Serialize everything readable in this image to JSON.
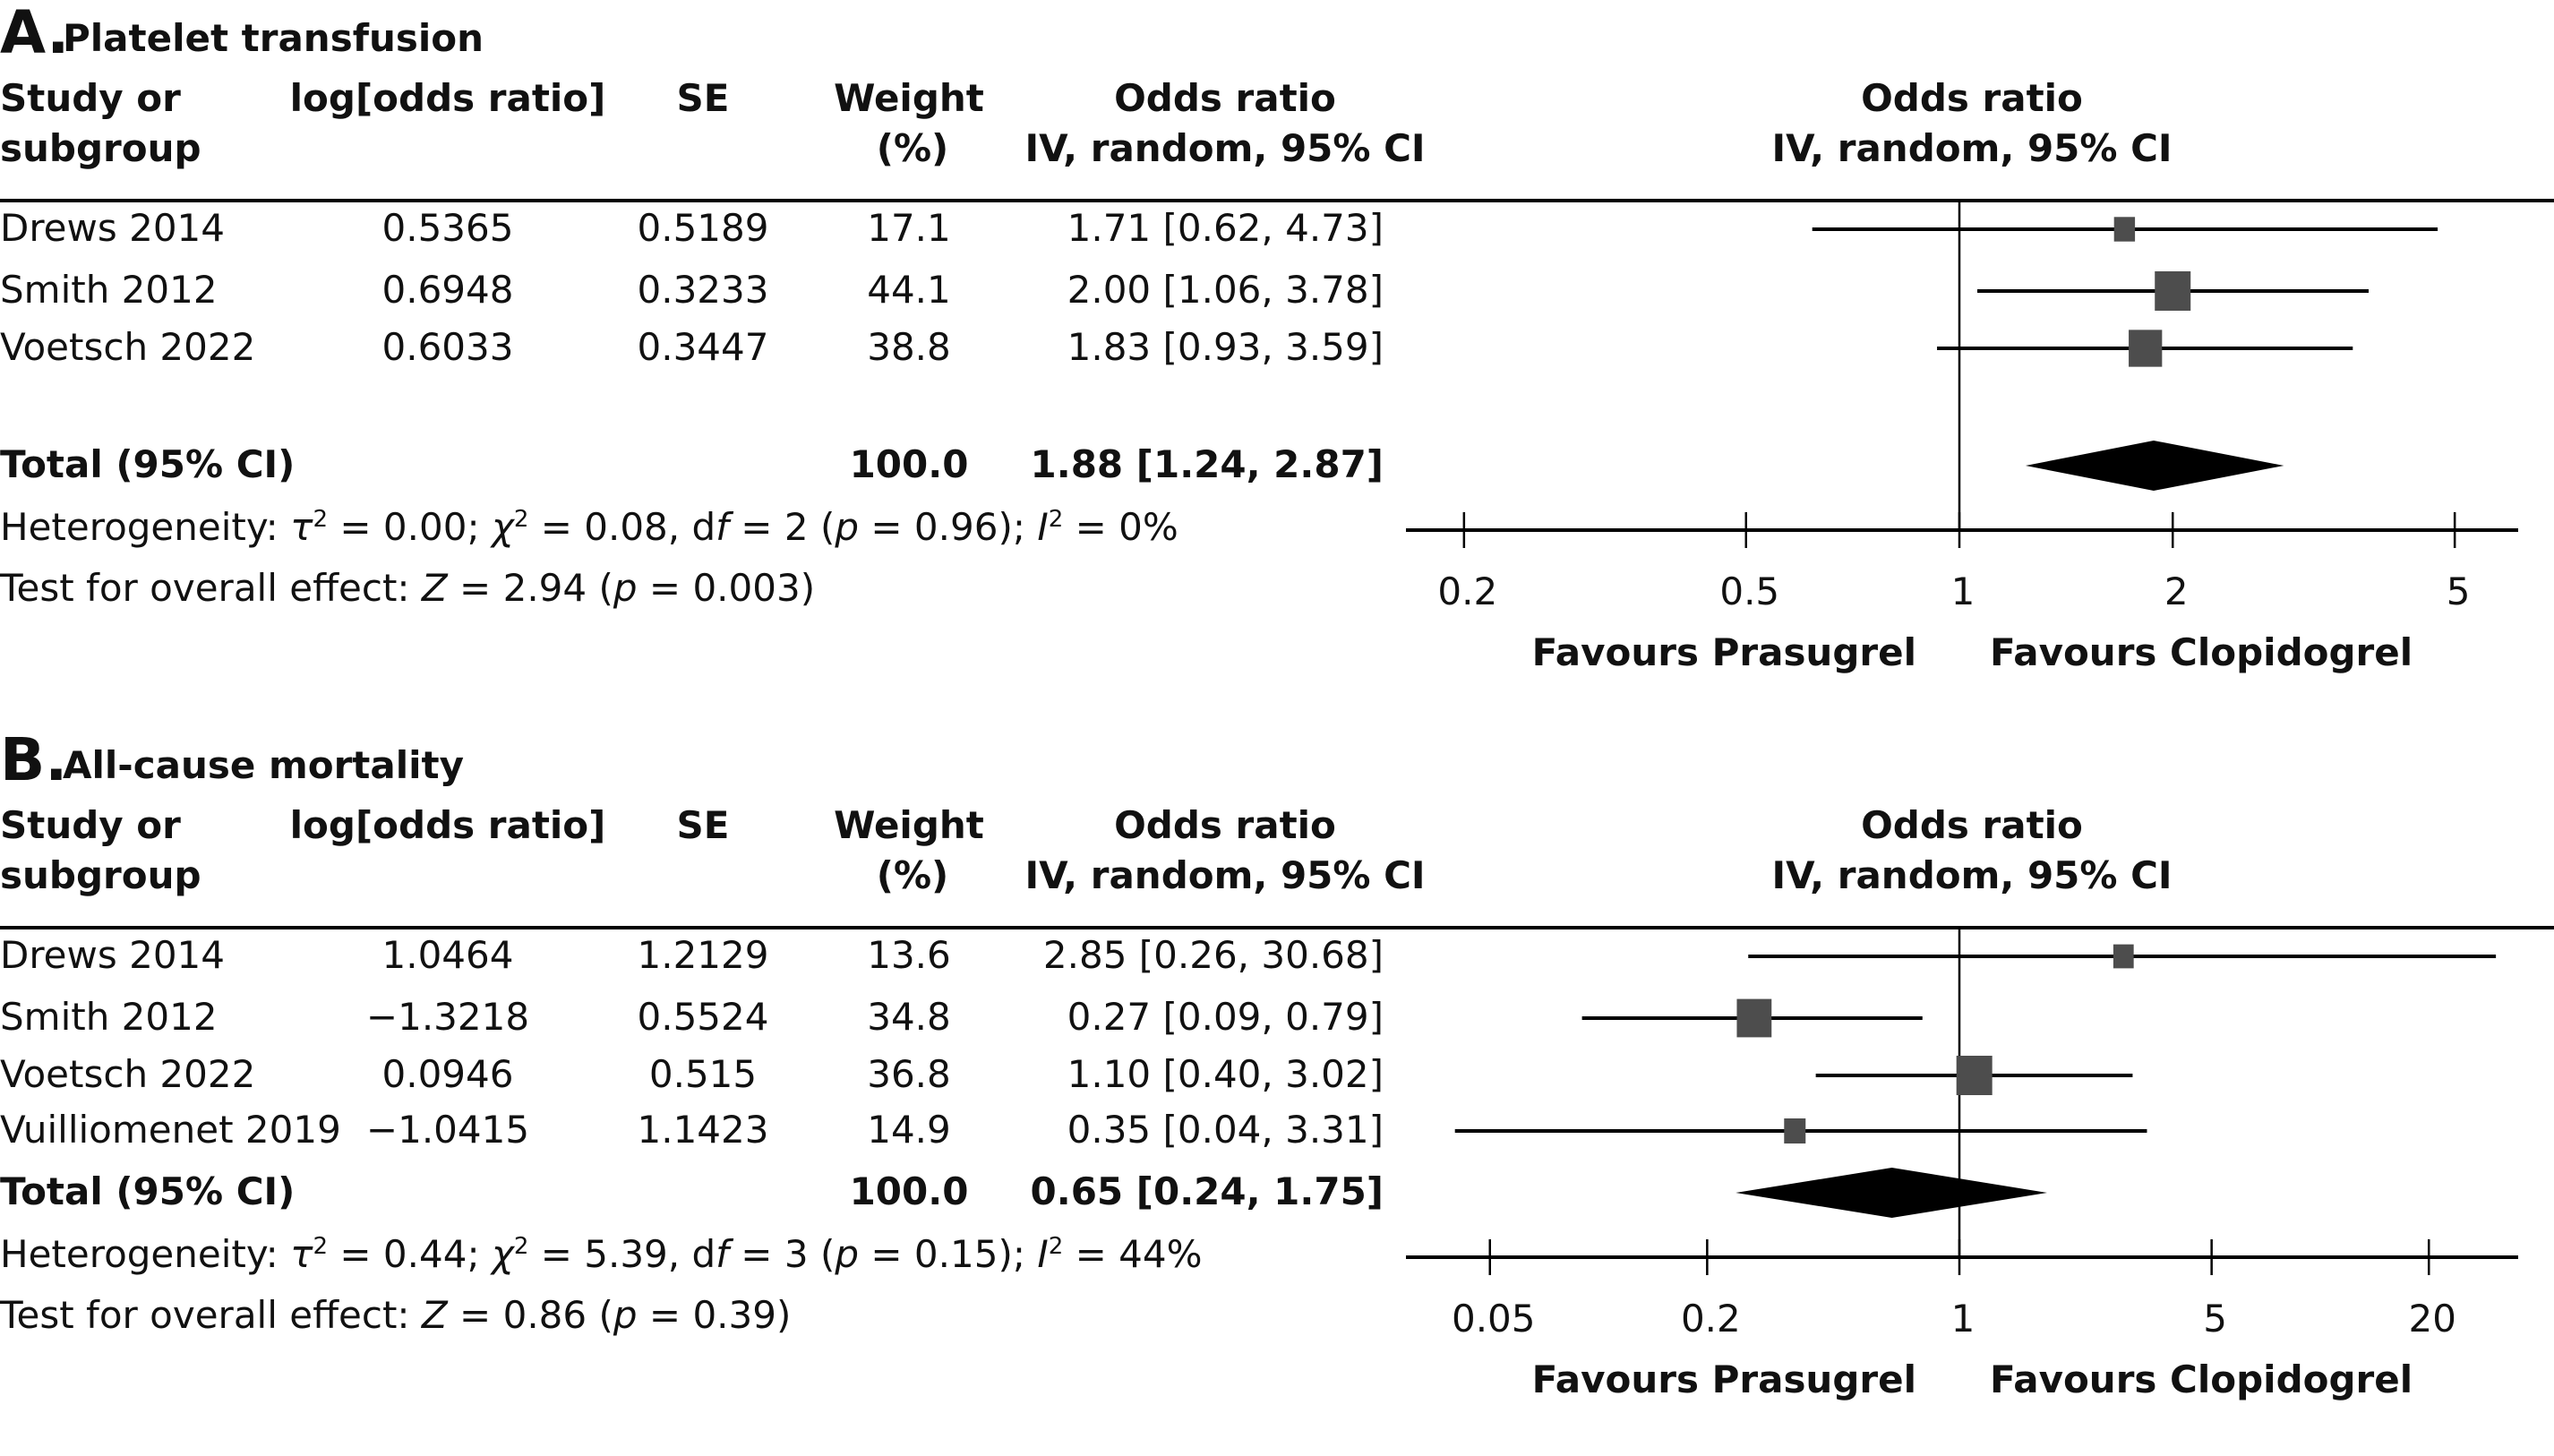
{
  "chart_data": [
    {
      "type": "forest",
      "panel_letter": "A.",
      "title": "Platelet transfusion",
      "columns": {
        "study": [
          "Study or",
          "subgroup"
        ],
        "logor": [
          "log[odds ratio]",
          ""
        ],
        "se": [
          "SE",
          ""
        ],
        "weight": [
          "Weight",
          "(%)"
        ],
        "or": [
          "Odds ratio",
          "IV, random, 95% CI"
        ],
        "plot": [
          "Odds ratio",
          "IV, random, 95% CI"
        ]
      },
      "studies": [
        {
          "name": "Drews 2014",
          "logor": "0.5365",
          "se": "0.5189",
          "weight": 17.1,
          "weight_label": "17.1",
          "or": 1.71,
          "lo": 0.62,
          "hi": 4.73,
          "or_label": "1.71 [0.62, 4.73]"
        },
        {
          "name": "Smith 2012",
          "logor": "0.6948",
          "se": "0.3233",
          "weight": 44.1,
          "weight_label": "44.1",
          "or": 2.0,
          "lo": 1.06,
          "hi": 3.78,
          "or_label": "2.00 [1.06, 3.78]"
        },
        {
          "name": "Voetsch 2022",
          "logor": "0.6033",
          "se": "0.3447",
          "weight": 38.8,
          "weight_label": "38.8",
          "or": 1.83,
          "lo": 0.93,
          "hi": 3.59,
          "or_label": "1.83 [0.93, 3.59]"
        }
      ],
      "total": {
        "label": "Total (95% CI)",
        "weight_label": "100.0",
        "or": 1.88,
        "lo": 1.24,
        "hi": 2.87,
        "or_label": "1.88 [1.24, 2.87]"
      },
      "heterogeneity": {
        "prefix": "Heterogeneity: ",
        "tau2": "0.00",
        "chi2": "0.08",
        "df": "2",
        "p": "0.96",
        "i2": "0%"
      },
      "overall_effect": {
        "prefix": "Test for overall effect: ",
        "z": "2.94",
        "p": "0.003"
      },
      "x_scale": "log",
      "xlim": [
        0.17,
        7.5
      ],
      "xticks": [
        0.2,
        0.5,
        1,
        2,
        5
      ],
      "xtick_labels": [
        "0.2",
        "0.5",
        "1",
        "2",
        "5"
      ],
      "favours_left": "Favours Prasugrel",
      "favours_right": "Favours Clopidogrel"
    },
    {
      "type": "forest",
      "panel_letter": "B.",
      "title": "All-cause mortality",
      "columns": {
        "study": [
          "Study or",
          "subgroup"
        ],
        "logor": [
          "log[odds ratio]",
          ""
        ],
        "se": [
          "SE",
          ""
        ],
        "weight": [
          "Weight",
          "(%)"
        ],
        "or": [
          "Odds ratio",
          "IV, random, 95% CI"
        ],
        "plot": [
          "Odds ratio",
          "IV, random, 95% CI"
        ]
      },
      "studies": [
        {
          "name": "Drews 2014",
          "logor": "1.0464",
          "se": "1.2129",
          "weight": 13.6,
          "weight_label": "13.6",
          "or": 2.85,
          "lo": 0.26,
          "hi": 30.68,
          "or_label": "2.85 [0.26, 30.68]"
        },
        {
          "name": "Smith 2012",
          "logor": "−1.3218",
          "se": "0.5524",
          "weight": 34.8,
          "weight_label": "34.8",
          "or": 0.27,
          "lo": 0.09,
          "hi": 0.79,
          "or_label": "0.27 [0.09, 0.79]"
        },
        {
          "name": "Voetsch 2022",
          "logor": "0.0946",
          "se": "0.515",
          "weight": 36.8,
          "weight_label": "36.8",
          "or": 1.1,
          "lo": 0.4,
          "hi": 3.02,
          "or_label": "1.10 [0.40, 3.02]"
        },
        {
          "name": "Vuilliomenet 2019",
          "logor": "−1.0415",
          "se": "1.1423",
          "weight": 14.9,
          "weight_label": "14.9",
          "or": 0.35,
          "lo": 0.04,
          "hi": 3.31,
          "or_label": "0.35 [0.04, 3.31]"
        }
      ],
      "total": {
        "label": "Total (95% CI)",
        "weight_label": "100.0",
        "or": 0.65,
        "lo": 0.24,
        "hi": 1.75,
        "or_label": "0.65 [0.24, 1.75]"
      },
      "heterogeneity": {
        "prefix": "Heterogeneity: ",
        "tau2": "0.44",
        "chi2": "5.39",
        "df": "3",
        "p": "0.15",
        "i2": "44%"
      },
      "overall_effect": {
        "prefix": "Test for overall effect: ",
        "z": "0.86",
        "p": "0.39"
      },
      "x_scale": "log",
      "xlim": [
        0.028,
        36
      ],
      "xticks": [
        0.05,
        0.2,
        1,
        5,
        20
      ],
      "xtick_labels": [
        "0.05",
        "0.2",
        "1",
        "5",
        "20"
      ],
      "favours_left": "Favours Prasugrel",
      "favours_right": "Favours Clopidogrel"
    }
  ],
  "symbols": {
    "tau": "τ",
    "chi": "χ",
    "sq": "2",
    "df": "df",
    "p": "p",
    "i": "I",
    "z": "Z"
  },
  "colors": {
    "square": "#4d4d4d",
    "diamond": "#000000",
    "line": "#000000"
  }
}
